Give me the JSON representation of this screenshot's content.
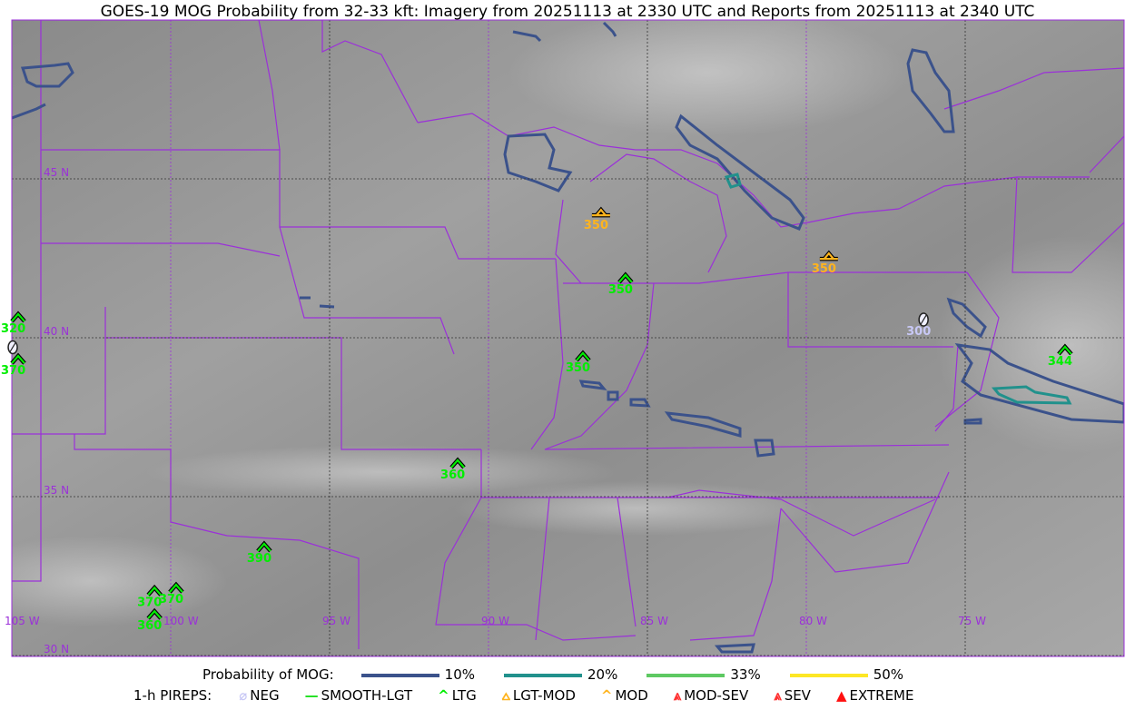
{
  "title": "GOES-19 MOG Probability from 32-33 kft: Imagery from 20251113 at 2330 UTC and Reports from 20251113 at 2340 UTC",
  "map": {
    "lon_labels": [
      "105 W",
      "100 W",
      "95 W",
      "90 W",
      "85 W",
      "80 W",
      "75 W"
    ],
    "lon_values": [
      -105,
      -100,
      -95,
      -90,
      -85,
      -80,
      -75
    ],
    "lat_labels": [
      "45 N",
      "40 N",
      "35 N",
      "30 N"
    ],
    "lat_values": [
      45,
      40,
      35,
      30
    ],
    "extent": {
      "lon": [
        -105,
        -70
      ],
      "lat": [
        30,
        50
      ]
    },
    "border_color": "#9b30d9",
    "grid_color_lon": "#9b30d9",
    "grid_color_dark": "#333333"
  },
  "legend": {
    "prob_title": "Probability of MOG:",
    "prob_items": [
      {
        "label": "10%",
        "color": "#3b528b"
      },
      {
        "label": "20%",
        "color": "#21918c"
      },
      {
        "label": "33%",
        "color": "#5ec962"
      },
      {
        "label": "50%",
        "color": "#fde725"
      }
    ],
    "pirep_title": "1-h PIREPS:",
    "pirep_items": [
      {
        "label": "NEG",
        "icon": "neg-icon",
        "color": "#c8c8f5"
      },
      {
        "label": "SMOOTH-LGT",
        "icon": "smooth-lgt-line-icon",
        "color": "#22e022"
      },
      {
        "label": "LTG",
        "icon": "ltg-chevron-icon",
        "color": "#00ee00"
      },
      {
        "label": "LGT-MOD",
        "icon": "lgt-mod-icon",
        "color": "#ffb41e"
      },
      {
        "label": "MOD",
        "icon": "mod-chevron-icon",
        "color": "#ffb41e"
      },
      {
        "label": "MOD-SEV",
        "icon": "mod-sev-icon",
        "color": "#ff3030"
      },
      {
        "label": "SEV",
        "icon": "sev-icon",
        "color": "#ff3030"
      },
      {
        "label": "EXTREME",
        "icon": "extreme-icon",
        "color": "#ff1010"
      }
    ]
  },
  "reports": [
    {
      "type": "LGT-MOD",
      "alt": "350",
      "lon": -86.46,
      "lat": 43.91
    },
    {
      "type": "LGT-MOD",
      "alt": "350",
      "lon": -79.29,
      "lat": 42.54
    },
    {
      "type": "LTG",
      "alt": "350",
      "lon": -85.69,
      "lat": 41.89
    },
    {
      "type": "LTG",
      "alt": "350",
      "lon": -87.03,
      "lat": 39.43
    },
    {
      "type": "LTG",
      "alt": "360",
      "lon": -90.97,
      "lat": 36.06
    },
    {
      "type": "LTG",
      "alt": "390",
      "lon": -97.06,
      "lat": 33.43
    },
    {
      "type": "LTG",
      "alt": "370",
      "lon": -99.83,
      "lat": 32.14
    },
    {
      "type": "LTG",
      "alt": "370",
      "lon": -100.51,
      "lat": 32.05
    },
    {
      "type": "LTG",
      "alt": "360",
      "lon": -100.51,
      "lat": 31.31
    },
    {
      "type": "LTG",
      "alt": "320",
      "lon": -104.8,
      "lat": 40.66
    },
    {
      "type": "LTG",
      "alt": "370",
      "lon": -104.8,
      "lat": 39.34
    },
    {
      "type": "NEG",
      "alt": "",
      "lon": -104.97,
      "lat": 39.7
    },
    {
      "type": "NEG",
      "alt": "300",
      "lon": -76.31,
      "lat": 40.57
    },
    {
      "type": "LTG",
      "alt": "344",
      "lon": -71.86,
      "lat": 39.63
    }
  ]
}
